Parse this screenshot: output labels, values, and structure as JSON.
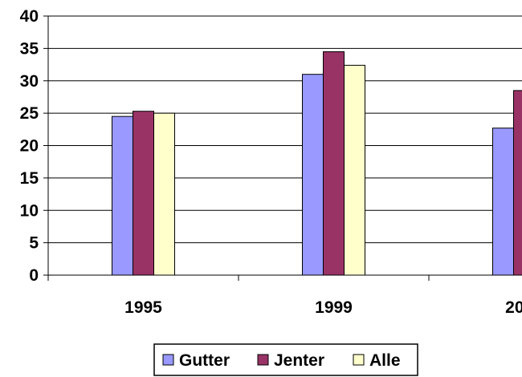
{
  "chart_data": {
    "type": "bar",
    "categories": [
      "1995",
      "1999",
      "2003"
    ],
    "series": [
      {
        "name": "Gutter",
        "values": [
          24.5,
          31.0,
          22.7
        ],
        "color": "#9999ff"
      },
      {
        "name": "Jenter",
        "values": [
          25.3,
          34.5,
          28.5
        ],
        "color": "#993366"
      },
      {
        "name": "Alle",
        "values": [
          25.0,
          32.4,
          25.5
        ],
        "color": "#ffffcc"
      }
    ],
    "title": "",
    "xlabel": "",
    "ylabel": "",
    "ylim": [
      0,
      40
    ],
    "yticks": [
      0,
      5,
      10,
      15,
      20,
      25,
      30,
      35,
      40
    ],
    "grid": true,
    "legend": "bottom"
  }
}
